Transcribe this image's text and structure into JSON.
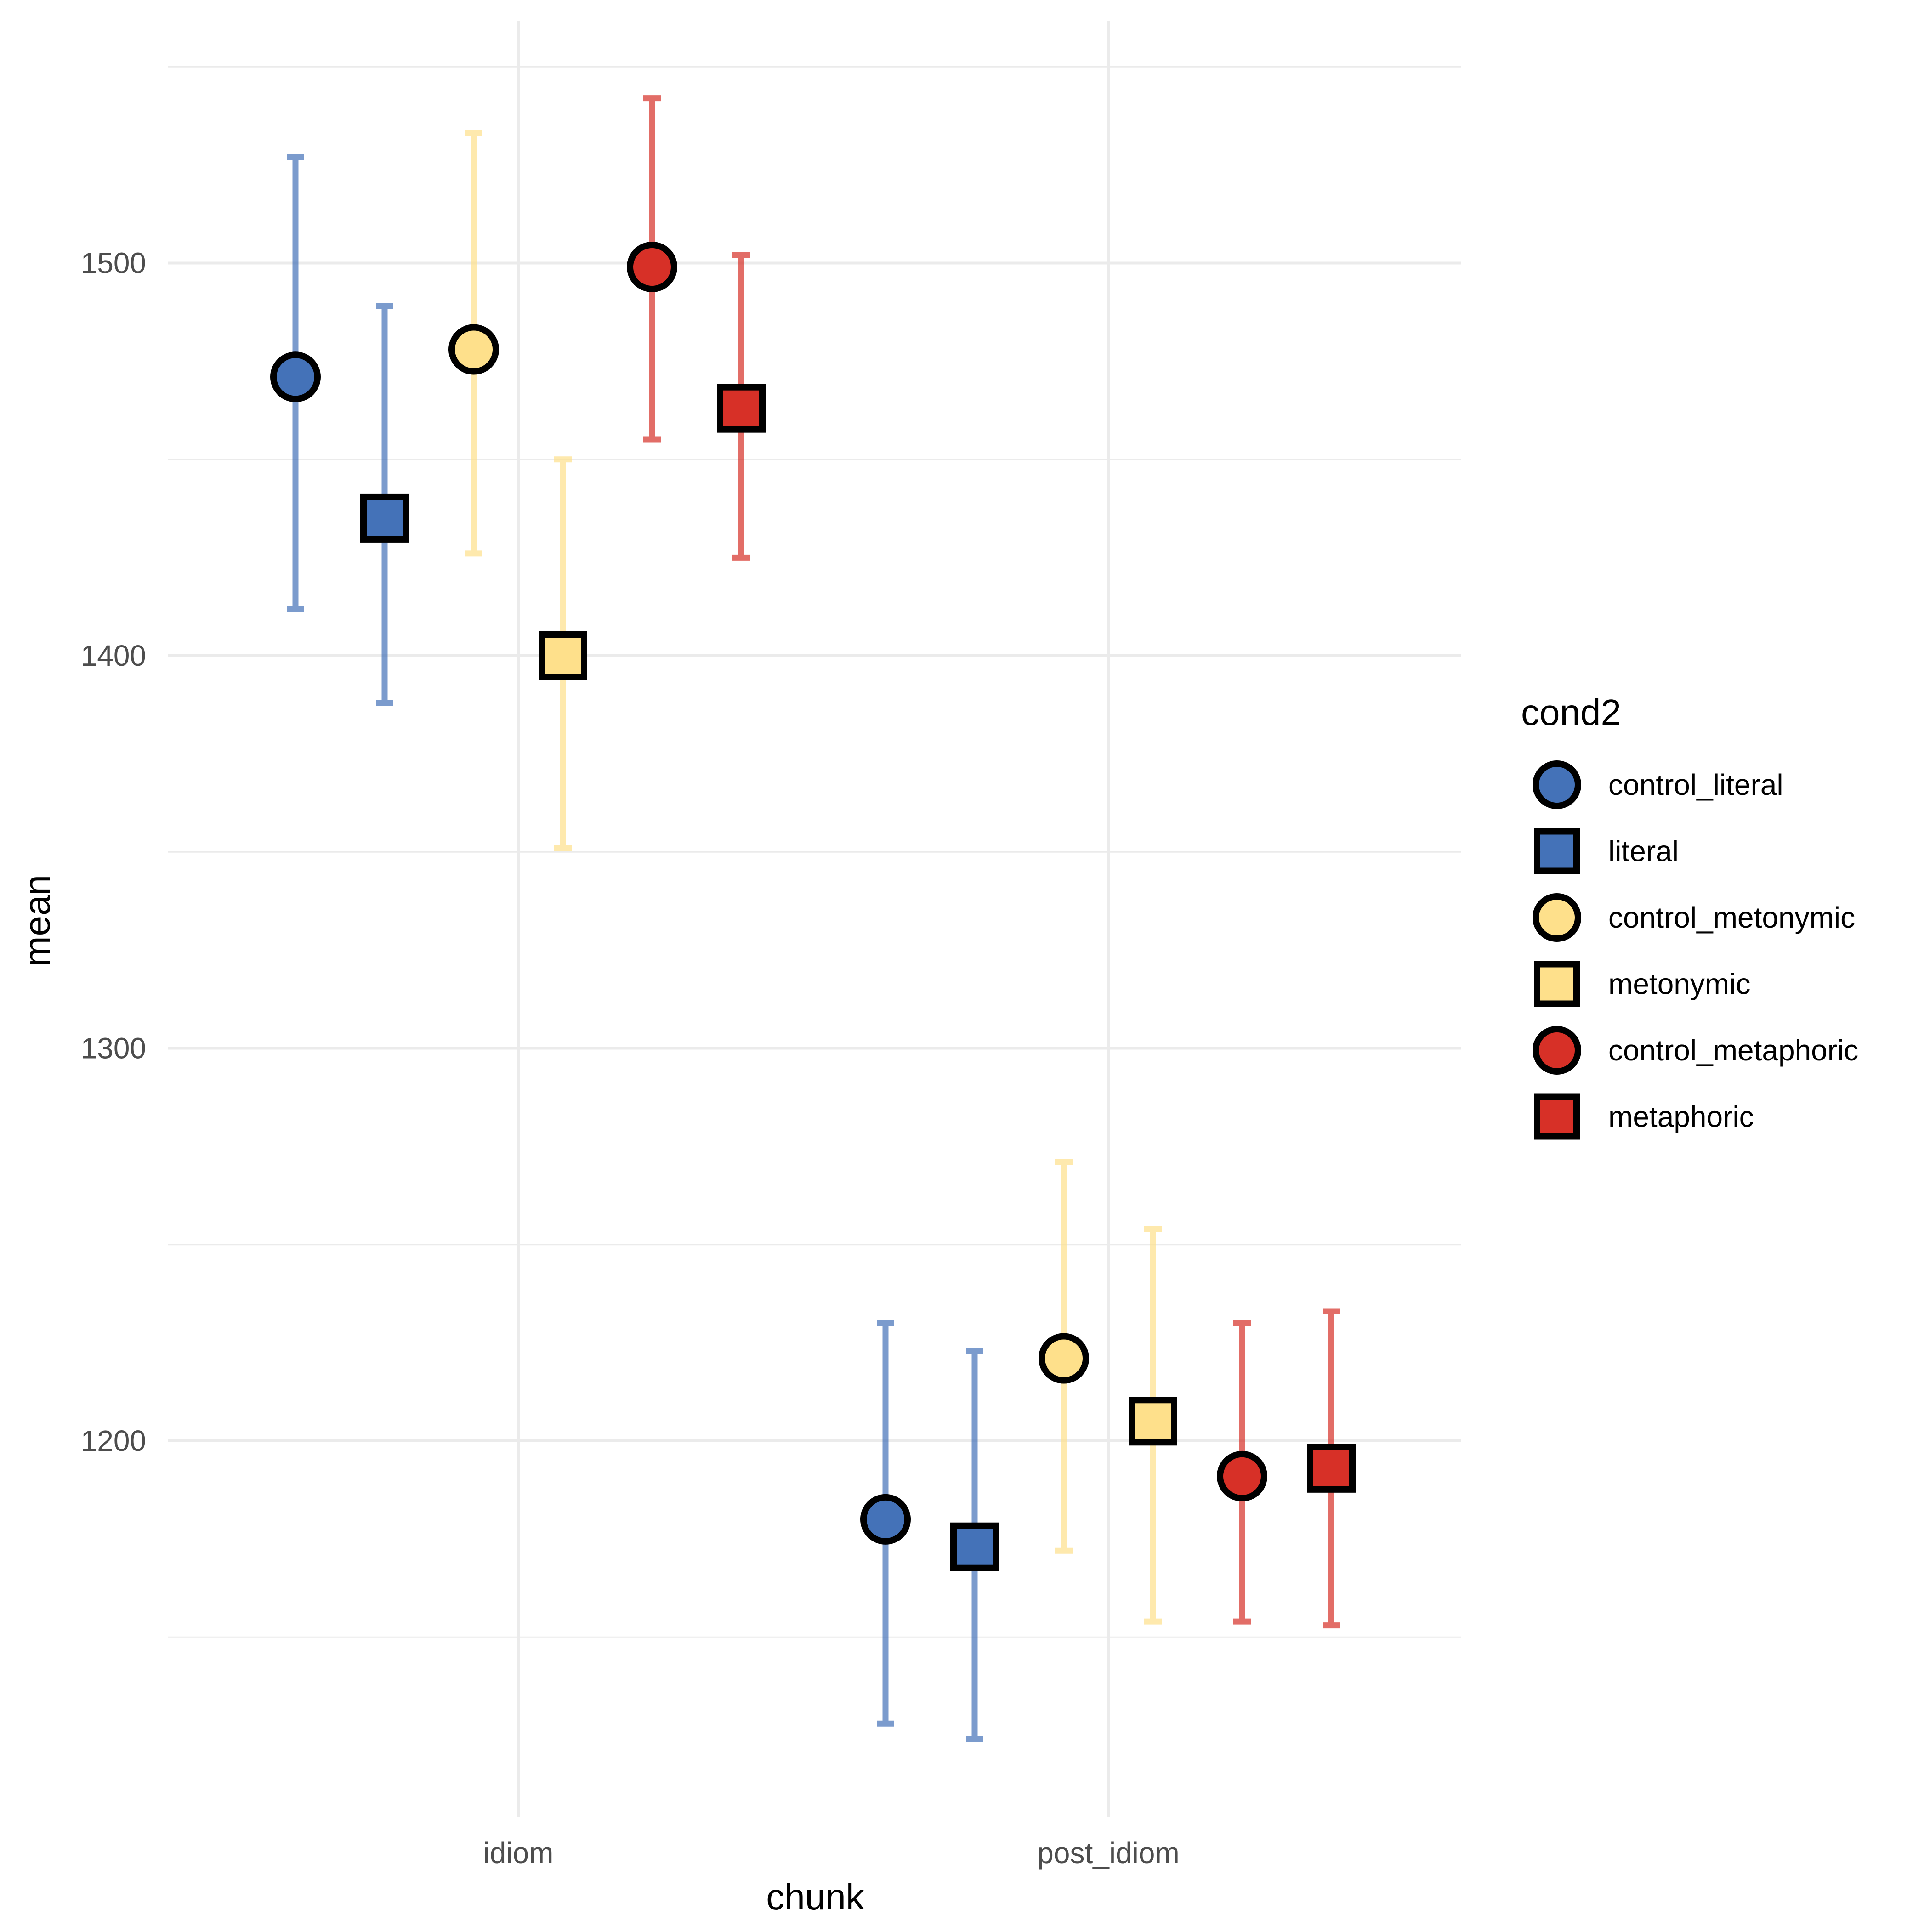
{
  "chart_data": {
    "type": "scatter",
    "subtype": "point-with-errorbars",
    "xlabel": "chunk",
    "ylabel": "mean",
    "categories": [
      "idiom",
      "post_idiom"
    ],
    "ylim": [
      1100,
      1550
    ],
    "yticks": [
      1200,
      1300,
      1400,
      1500
    ],
    "grid": true,
    "legend": {
      "title": "cond2",
      "placement": "right"
    },
    "series": [
      {
        "name": "control_literal",
        "shape": "circle",
        "color": "#4472b8",
        "points": [
          {
            "x": "idiom",
            "mean": 1471,
            "lower": 1412,
            "upper": 1527
          },
          {
            "x": "post_idiom",
            "mean": 1180,
            "lower": 1128,
            "upper": 1230
          }
        ]
      },
      {
        "name": "literal",
        "shape": "square",
        "color": "#4472b8",
        "points": [
          {
            "x": "idiom",
            "mean": 1435,
            "lower": 1388,
            "upper": 1489
          },
          {
            "x": "post_idiom",
            "mean": 1173,
            "lower": 1124,
            "upper": 1223
          }
        ]
      },
      {
        "name": "control_metonymic",
        "shape": "circle",
        "color": "#fee08b",
        "points": [
          {
            "x": "idiom",
            "mean": 1478,
            "lower": 1426,
            "upper": 1533
          },
          {
            "x": "post_idiom",
            "mean": 1221,
            "lower": 1172,
            "upper": 1271
          }
        ]
      },
      {
        "name": "metonymic",
        "shape": "square",
        "color": "#fee08b",
        "points": [
          {
            "x": "idiom",
            "mean": 1400,
            "lower": 1351,
            "upper": 1450
          },
          {
            "x": "post_idiom",
            "mean": 1205,
            "lower": 1154,
            "upper": 1254
          }
        ]
      },
      {
        "name": "control_metaphoric",
        "shape": "circle",
        "color": "#d73027",
        "points": [
          {
            "x": "idiom",
            "mean": 1499,
            "lower": 1455,
            "upper": 1542
          },
          {
            "x": "post_idiom",
            "mean": 1191,
            "lower": 1154,
            "upper": 1230
          }
        ]
      },
      {
        "name": "metaphoric",
        "shape": "square",
        "color": "#d73027",
        "points": [
          {
            "x": "idiom",
            "mean": 1463,
            "lower": 1425,
            "upper": 1502
          },
          {
            "x": "post_idiom",
            "mean": 1193,
            "lower": 1153,
            "upper": 1233
          }
        ]
      }
    ]
  }
}
